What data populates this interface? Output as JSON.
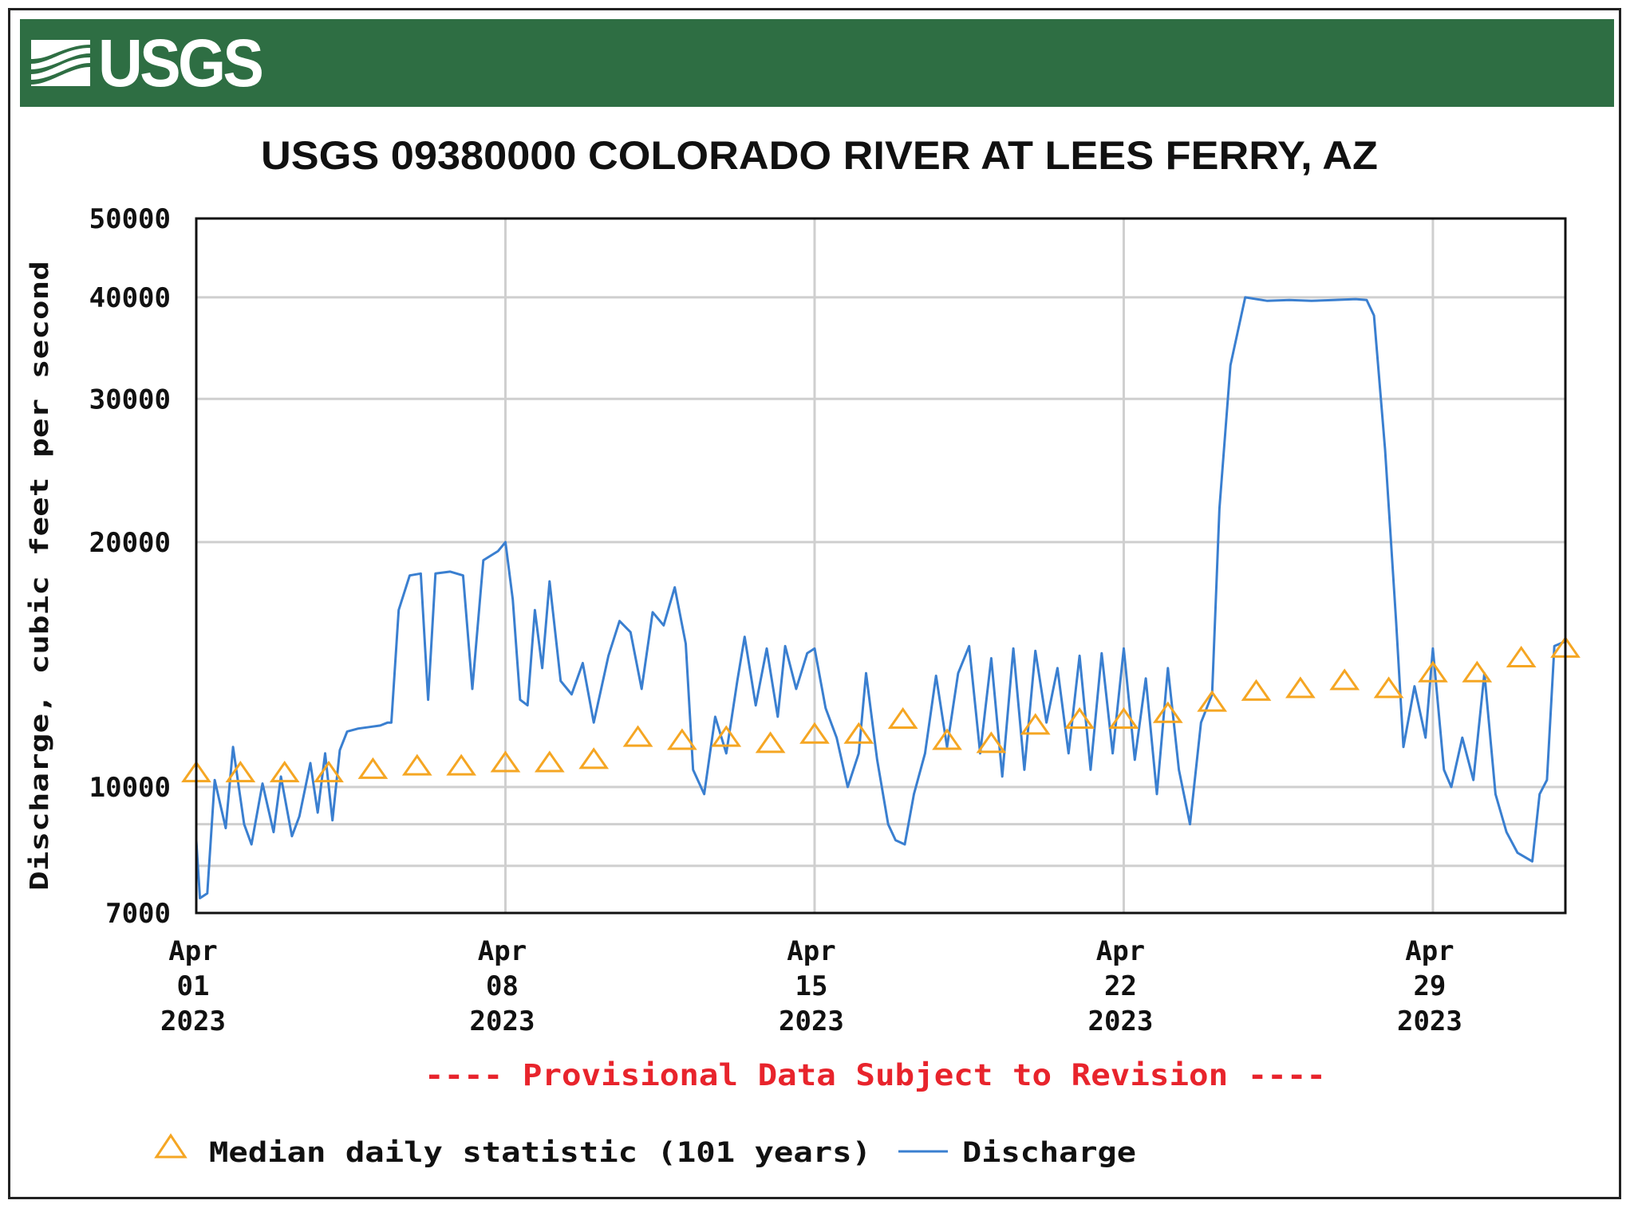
{
  "header": {
    "logo_text": "USGS"
  },
  "chart_data": {
    "type": "line",
    "title": "USGS 09380000 COLORADO RIVER AT LEES FERRY, AZ",
    "ylabel": "Discharge, cubic feet per second",
    "yscale": "log",
    "ylim": [
      7000,
      50000
    ],
    "yticks": [
      7000,
      10000,
      20000,
      30000,
      40000,
      50000
    ],
    "yticklabels": [
      "7000",
      "10000",
      "20000",
      "30000",
      "40000",
      "50000"
    ],
    "ygrid_minor": [
      8000,
      9000
    ],
    "xlim": [
      "2023-04-01",
      "2023-05-02"
    ],
    "xticks": [
      {
        "date": "2023-04-01",
        "label": [
          "Apr",
          "01",
          "2023"
        ]
      },
      {
        "date": "2023-04-08",
        "label": [
          "Apr",
          "08",
          "2023"
        ]
      },
      {
        "date": "2023-04-15",
        "label": [
          "Apr",
          "15",
          "2023"
        ]
      },
      {
        "date": "2023-04-22",
        "label": [
          "Apr",
          "22",
          "2023"
        ]
      },
      {
        "date": "2023-04-29",
        "label": [
          "Apr",
          "29",
          "2023"
        ]
      }
    ],
    "grid": true,
    "note": "---- Provisional Data Subject to Revision ----",
    "colors": {
      "discharge": "#3a7fd0",
      "median": "#f5a623",
      "note": "#e8242c",
      "banner": "#2e6e43"
    },
    "legend": {
      "placement": "bottom",
      "items": [
        {
          "label": "Median daily statistic (101 years)",
          "marker": "triangle"
        },
        {
          "label": "Discharge",
          "marker": "line"
        }
      ]
    },
    "series": [
      {
        "name": "Discharge",
        "style": "line",
        "points": [
          [
            "2023-04-01T00:00",
            8600
          ],
          [
            "2023-04-01T02:00",
            7300
          ],
          [
            "2023-04-01T06:00",
            7400
          ],
          [
            "2023-04-01T10:00",
            10200
          ],
          [
            "2023-04-01T16:00",
            8900
          ],
          [
            "2023-04-01T20:00",
            11200
          ],
          [
            "2023-04-02T02:00",
            9000
          ],
          [
            "2023-04-02T06:00",
            8500
          ],
          [
            "2023-04-02T12:00",
            10100
          ],
          [
            "2023-04-02T18:00",
            8800
          ],
          [
            "2023-04-02T22:00",
            10300
          ],
          [
            "2023-04-03T04:00",
            8700
          ],
          [
            "2023-04-03T08:00",
            9200
          ],
          [
            "2023-04-03T14:00",
            10700
          ],
          [
            "2023-04-03T18:00",
            9300
          ],
          [
            "2023-04-03T22:00",
            11000
          ],
          [
            "2023-04-04T02:00",
            9100
          ],
          [
            "2023-04-04T06:00",
            11100
          ],
          [
            "2023-04-04T10:00",
            11700
          ],
          [
            "2023-04-04T16:00",
            11800
          ],
          [
            "2023-04-04T22:00",
            11850
          ],
          [
            "2023-04-05T04:00",
            11900
          ],
          [
            "2023-04-05T08:00",
            12000
          ],
          [
            "2023-04-05T10:00",
            12000
          ],
          [
            "2023-04-05T14:00",
            16500
          ],
          [
            "2023-04-05T20:00",
            18200
          ],
          [
            "2023-04-06T02:00",
            18300
          ],
          [
            "2023-04-06T06:00",
            12800
          ],
          [
            "2023-04-06T10:00",
            18300
          ],
          [
            "2023-04-06T18:00",
            18400
          ],
          [
            "2023-04-07T01:00",
            18200
          ],
          [
            "2023-04-07T06:00",
            13200
          ],
          [
            "2023-04-07T12:00",
            19000
          ],
          [
            "2023-04-07T20:00",
            19500
          ],
          [
            "2023-04-08T00:00",
            20000
          ],
          [
            "2023-04-08T04:00",
            17000
          ],
          [
            "2023-04-08T08:00",
            12800
          ],
          [
            "2023-04-08T12:00",
            12600
          ],
          [
            "2023-04-08T16:00",
            16500
          ],
          [
            "2023-04-08T20:00",
            14000
          ],
          [
            "2023-04-09T00:00",
            17900
          ],
          [
            "2023-04-09T06:00",
            13500
          ],
          [
            "2023-04-09T12:00",
            13000
          ],
          [
            "2023-04-09T18:00",
            14200
          ],
          [
            "2023-04-10T00:00",
            12000
          ],
          [
            "2023-04-10T08:00",
            14500
          ],
          [
            "2023-04-10T14:00",
            16000
          ],
          [
            "2023-04-10T20:00",
            15500
          ],
          [
            "2023-04-11T02:00",
            13200
          ],
          [
            "2023-04-11T08:00",
            16400
          ],
          [
            "2023-04-11T14:00",
            15800
          ],
          [
            "2023-04-11T20:00",
            17600
          ],
          [
            "2023-04-12T02:00",
            15000
          ],
          [
            "2023-04-12T06:00",
            10500
          ],
          [
            "2023-04-12T12:00",
            9800
          ],
          [
            "2023-04-12T18:00",
            12200
          ],
          [
            "2023-04-13T00:00",
            11000
          ],
          [
            "2023-04-13T06:00",
            13500
          ],
          [
            "2023-04-13T10:00",
            15300
          ],
          [
            "2023-04-13T16:00",
            12600
          ],
          [
            "2023-04-13T22:00",
            14800
          ],
          [
            "2023-04-14T04:00",
            12200
          ],
          [
            "2023-04-14T08:00",
            14900
          ],
          [
            "2023-04-14T14:00",
            13200
          ],
          [
            "2023-04-14T20:00",
            14600
          ],
          [
            "2023-04-15T00:00",
            14800
          ],
          [
            "2023-04-15T06:00",
            12500
          ],
          [
            "2023-04-15T12:00",
            11500
          ],
          [
            "2023-04-15T18:00",
            10000
          ],
          [
            "2023-04-16T00:00",
            11000
          ],
          [
            "2023-04-16T04:00",
            13800
          ],
          [
            "2023-04-16T10:00",
            10800
          ],
          [
            "2023-04-16T16:00",
            9000
          ],
          [
            "2023-04-16T20:00",
            8600
          ],
          [
            "2023-04-17T01:00",
            8500
          ],
          [
            "2023-04-17T06:00",
            9800
          ],
          [
            "2023-04-17T12:00",
            11000
          ],
          [
            "2023-04-17T18:00",
            13700
          ],
          [
            "2023-04-18T00:00",
            11200
          ],
          [
            "2023-04-18T06:00",
            13800
          ],
          [
            "2023-04-18T12:00",
            14900
          ],
          [
            "2023-04-18T18:00",
            11000
          ],
          [
            "2023-04-19T00:00",
            14400
          ],
          [
            "2023-04-19T06:00",
            10300
          ],
          [
            "2023-04-19T12:00",
            14800
          ],
          [
            "2023-04-19T18:00",
            10500
          ],
          [
            "2023-04-20T00:00",
            14700
          ],
          [
            "2023-04-20T06:00",
            12000
          ],
          [
            "2023-04-20T12:00",
            14000
          ],
          [
            "2023-04-20T18:00",
            11000
          ],
          [
            "2023-04-21T00:00",
            14500
          ],
          [
            "2023-04-21T06:00",
            10500
          ],
          [
            "2023-04-21T12:00",
            14600
          ],
          [
            "2023-04-21T18:00",
            11000
          ],
          [
            "2023-04-22T00:00",
            14800
          ],
          [
            "2023-04-22T06:00",
            10800
          ],
          [
            "2023-04-22T12:00",
            13600
          ],
          [
            "2023-04-22T18:00",
            9800
          ],
          [
            "2023-04-23T00:00",
            14000
          ],
          [
            "2023-04-23T06:00",
            10500
          ],
          [
            "2023-04-23T12:00",
            9000
          ],
          [
            "2023-04-23T18:00",
            12000
          ],
          [
            "2023-04-24T00:00",
            13000
          ],
          [
            "2023-04-24T04:00",
            22000
          ],
          [
            "2023-04-24T10:00",
            33000
          ],
          [
            "2023-04-24T18:00",
            40000
          ],
          [
            "2023-04-25T06:00",
            39600
          ],
          [
            "2023-04-25T18:00",
            39700
          ],
          [
            "2023-04-26T06:00",
            39600
          ],
          [
            "2023-04-26T18:00",
            39700
          ],
          [
            "2023-04-27T06:00",
            39800
          ],
          [
            "2023-04-27T12:00",
            39700
          ],
          [
            "2023-04-27T16:00",
            38000
          ],
          [
            "2023-04-27T22:00",
            26000
          ],
          [
            "2023-04-28T04:00",
            16000
          ],
          [
            "2023-04-28T08:00",
            11200
          ],
          [
            "2023-04-28T14:00",
            13300
          ],
          [
            "2023-04-28T20:00",
            11500
          ],
          [
            "2023-04-29T00:00",
            14800
          ],
          [
            "2023-04-29T06:00",
            10500
          ],
          [
            "2023-04-29T10:00",
            10000
          ],
          [
            "2023-04-29T16:00",
            11500
          ],
          [
            "2023-04-29T22:00",
            10200
          ],
          [
            "2023-04-30T04:00",
            13800
          ],
          [
            "2023-04-30T10:00",
            9800
          ],
          [
            "2023-04-30T16:00",
            8800
          ],
          [
            "2023-04-30T22:00",
            8300
          ],
          [
            "2023-05-01T06:00",
            8100
          ],
          [
            "2023-05-01T10:00",
            9800
          ],
          [
            "2023-05-01T14:00",
            10200
          ],
          [
            "2023-05-01T18:00",
            14900
          ],
          [
            "2023-05-02T00:00",
            15100
          ]
        ]
      },
      {
        "name": "Median daily statistic (101 years)",
        "style": "marker",
        "points": [
          [
            "2023-04-01",
            10400
          ],
          [
            "2023-04-02",
            10400
          ],
          [
            "2023-04-03",
            10400
          ],
          [
            "2023-04-04",
            10400
          ],
          [
            "2023-04-05",
            10500
          ],
          [
            "2023-04-06",
            10600
          ],
          [
            "2023-04-07",
            10600
          ],
          [
            "2023-04-08",
            10700
          ],
          [
            "2023-04-09",
            10700
          ],
          [
            "2023-04-10",
            10800
          ],
          [
            "2023-04-11",
            11500
          ],
          [
            "2023-04-12",
            11400
          ],
          [
            "2023-04-13",
            11500
          ],
          [
            "2023-04-14",
            11300
          ],
          [
            "2023-04-15",
            11600
          ],
          [
            "2023-04-16",
            11600
          ],
          [
            "2023-04-17",
            12100
          ],
          [
            "2023-04-18",
            11400
          ],
          [
            "2023-04-19",
            11300
          ],
          [
            "2023-04-20",
            11900
          ],
          [
            "2023-04-21",
            12100
          ],
          [
            "2023-04-22",
            12100
          ],
          [
            "2023-04-23",
            12300
          ],
          [
            "2023-04-24",
            12700
          ],
          [
            "2023-04-25",
            13100
          ],
          [
            "2023-04-26",
            13200
          ],
          [
            "2023-04-27",
            13500
          ],
          [
            "2023-04-28",
            13200
          ],
          [
            "2023-04-29",
            13800
          ],
          [
            "2023-04-30",
            13800
          ],
          [
            "2023-05-01",
            14400
          ],
          [
            "2023-05-02",
            14800
          ]
        ]
      }
    ]
  }
}
